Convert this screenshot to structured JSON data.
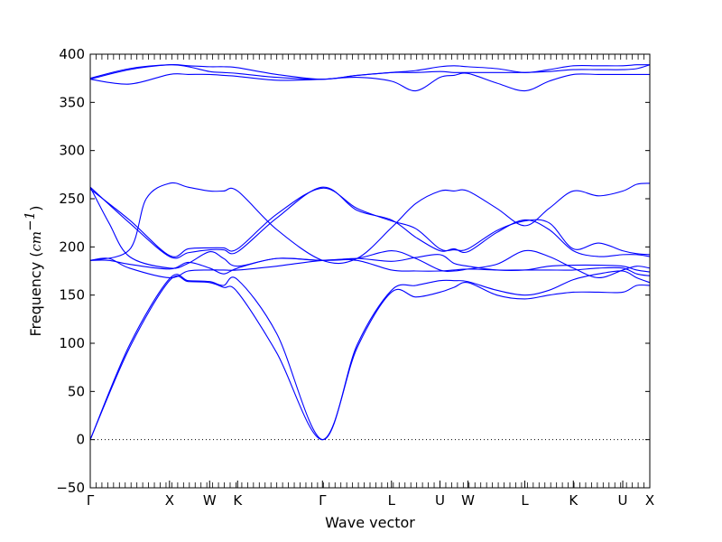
{
  "chart_data": {
    "type": "line",
    "title": "",
    "xlabel": "Wave vector",
    "ylabel": "Frequency (cm⁻¹)",
    "ylabel_prefix": "Frequency (",
    "ylabel_unit": "cm",
    "ylabel_unit_exp": "−1",
    "ylabel_suffix": ")",
    "ylim": [
      -50,
      400
    ],
    "yticks": [
      -50,
      0,
      50,
      100,
      150,
      200,
      250,
      300,
      350,
      400
    ],
    "ytick_labels": [
      "−50",
      "0",
      "50",
      "100",
      "150",
      "200",
      "250",
      "300",
      "350",
      "400"
    ],
    "xlim": [
      0,
      6.0
    ],
    "high_symmetry_points": [
      {
        "label": "Γ",
        "x": 0.0
      },
      {
        "label": "X",
        "x": 0.85
      },
      {
        "label": "W",
        "x": 1.28
      },
      {
        "label": "K",
        "x": 1.58
      },
      {
        "label": "Γ",
        "x": 2.49
      },
      {
        "label": "L",
        "x": 3.23
      },
      {
        "label": "U",
        "x": 3.75
      },
      {
        "label": "W",
        "x": 4.05
      },
      {
        "label": "L",
        "x": 4.66
      },
      {
        "label": "K",
        "x": 5.18
      },
      {
        "label": "U",
        "x": 5.71
      },
      {
        "label": "X",
        "x": 6.0
      }
    ],
    "zero_line": {
      "y": 0,
      "style": "dotted"
    },
    "line_color": "#0000ff",
    "grid": false,
    "legend": "none",
    "series": [
      {
        "x": [
          0.0,
          0.42,
          0.85,
          1.05,
          1.28,
          1.43,
          1.58,
          2.0,
          2.49,
          2.86,
          3.23,
          3.49,
          3.75,
          3.9,
          4.05,
          4.36,
          4.66,
          4.92,
          5.18,
          5.45,
          5.71,
          5.86,
          6.0
        ],
        "y": [
          0,
          95,
          165,
          164,
          163,
          158,
          153,
          90,
          0,
          95,
          153,
          148,
          153,
          158,
          163,
          150,
          146,
          150,
          153,
          153,
          153,
          160,
          160
        ]
      },
      {
        "x": [
          0.0,
          0.42,
          0.85,
          1.05,
          1.28,
          1.43,
          1.58,
          2.0,
          2.49,
          2.86,
          3.23,
          3.49,
          3.75,
          3.9,
          4.05,
          4.36,
          4.66,
          4.92,
          5.18,
          5.45,
          5.71,
          5.86,
          6.0
        ],
        "y": [
          0,
          98,
          167,
          165,
          164,
          160,
          166,
          110,
          0,
          98,
          155,
          160,
          165,
          165,
          164,
          155,
          150,
          155,
          166,
          172,
          175,
          168,
          163
        ]
      },
      {
        "x": [
          0.0,
          0.2,
          0.42,
          0.85,
          1.05,
          1.28,
          1.43,
          1.58,
          2.0,
          2.49,
          2.86,
          3.23,
          3.49,
          3.75,
          3.9,
          4.05,
          4.36,
          4.66,
          4.92,
          5.18,
          5.45,
          5.71,
          5.86,
          6.0
        ],
        "y": [
          186,
          188,
          178,
          168,
          175,
          176,
          176,
          176,
          180,
          186,
          186,
          176,
          175,
          175,
          176,
          177,
          176,
          176,
          176,
          176,
          178,
          178,
          172,
          170
        ]
      },
      {
        "x": [
          0.0,
          0.2,
          0.42,
          0.85,
          1.05,
          1.28,
          1.43,
          1.58,
          2.0,
          2.49,
          2.86,
          3.23,
          3.49,
          3.75,
          3.9,
          4.05,
          4.36,
          4.66,
          4.92,
          5.18,
          5.45,
          5.71,
          5.86,
          6.0
        ],
        "y": [
          186,
          186,
          182,
          177,
          184,
          178,
          172,
          178,
          188,
          186,
          188,
          185,
          189,
          192,
          183,
          180,
          176,
          176,
          180,
          181,
          181,
          180,
          176,
          174
        ]
      },
      {
        "x": [
          0.0,
          0.2,
          0.42,
          0.85,
          1.05,
          1.28,
          1.43,
          1.58,
          2.0,
          2.49,
          2.86,
          3.23,
          3.49,
          3.75,
          3.9,
          4.05,
          4.36,
          4.66,
          4.92,
          5.18,
          5.45,
          5.71,
          5.86,
          6.0
        ],
        "y": [
          262,
          225,
          190,
          178,
          183,
          195,
          188,
          180,
          188,
          186,
          188,
          196,
          188,
          176,
          175,
          177,
          182,
          196,
          190,
          178,
          168,
          176,
          180,
          178
        ]
      },
      {
        "x": [
          0.0,
          0.42,
          0.85,
          1.05,
          1.28,
          1.43,
          1.58,
          2.0,
          2.49,
          2.86,
          3.23,
          3.49,
          3.75,
          3.9,
          4.05,
          4.36,
          4.66,
          4.92,
          5.18,
          5.45,
          5.71,
          5.86,
          6.0
        ],
        "y": [
          262,
          225,
          190,
          194,
          197,
          197,
          195,
          230,
          262,
          238,
          228,
          210,
          196,
          198,
          195,
          215,
          228,
          218,
          196,
          190,
          192,
          192,
          190
        ]
      },
      {
        "x": [
          0.0,
          0.42,
          0.85,
          1.05,
          1.28,
          1.43,
          1.58,
          2.0,
          2.49,
          2.86,
          3.23,
          3.49,
          3.75,
          3.9,
          4.05,
          4.36,
          4.66,
          4.92,
          5.18,
          5.45,
          5.71,
          5.86,
          6.0
        ],
        "y": [
          260,
          228,
          191,
          198,
          199,
          199,
          198,
          234,
          261,
          240,
          227,
          219,
          198,
          197,
          198,
          217,
          227,
          225,
          198,
          204,
          196,
          193,
          192
        ]
      },
      {
        "x": [
          0.0,
          0.42,
          0.6,
          0.85,
          1.05,
          1.28,
          1.43,
          1.58,
          2.0,
          2.49,
          2.86,
          3.23,
          3.49,
          3.75,
          3.9,
          4.05,
          4.36,
          4.66,
          4.92,
          5.18,
          5.45,
          5.71,
          5.86,
          6.0
        ],
        "y": [
          186,
          197,
          250,
          266,
          262,
          258,
          258,
          258,
          218,
          186,
          188,
          220,
          245,
          258,
          258,
          258,
          240,
          222,
          240,
          258,
          253,
          258,
          265,
          266
        ]
      },
      {
        "x": [
          0.0,
          0.42,
          0.85,
          1.05,
          1.28,
          1.43,
          1.58,
          2.0,
          2.49,
          2.86,
          3.23,
          3.49,
          3.75,
          3.9,
          4.05,
          4.36,
          4.66,
          4.92,
          5.18,
          5.45,
          5.71,
          5.86,
          6.0
        ],
        "y": [
          374,
          369,
          379,
          379,
          379,
          378,
          377,
          373,
          374,
          376,
          372,
          362,
          376,
          378,
          380,
          370,
          362,
          372,
          379,
          379,
          379,
          379,
          379
        ]
      },
      {
        "x": [
          0.0,
          0.42,
          0.85,
          1.05,
          1.28,
          1.43,
          1.58,
          2.0,
          2.49,
          2.86,
          3.23,
          3.49,
          3.75,
          3.9,
          4.05,
          4.36,
          4.66,
          4.92,
          5.18,
          5.45,
          5.71,
          5.86,
          6.0
        ],
        "y": [
          375,
          385,
          389,
          387,
          382,
          381,
          380,
          376,
          374,
          378,
          381,
          381,
          382,
          381,
          381,
          381,
          381,
          382,
          384,
          384,
          384,
          385,
          389
        ]
      },
      {
        "x": [
          0.0,
          0.42,
          0.85,
          1.05,
          1.28,
          1.43,
          1.58,
          2.0,
          2.49,
          2.86,
          3.23,
          3.49,
          3.75,
          3.9,
          4.05,
          4.36,
          4.66,
          4.92,
          5.18,
          5.45,
          5.71,
          5.86,
          6.0
        ],
        "y": [
          374,
          384,
          389,
          388,
          387,
          387,
          386,
          379,
          374,
          378,
          381,
          383,
          387,
          388,
          387,
          385,
          381,
          384,
          388,
          388,
          388,
          389,
          389
        ]
      }
    ]
  }
}
